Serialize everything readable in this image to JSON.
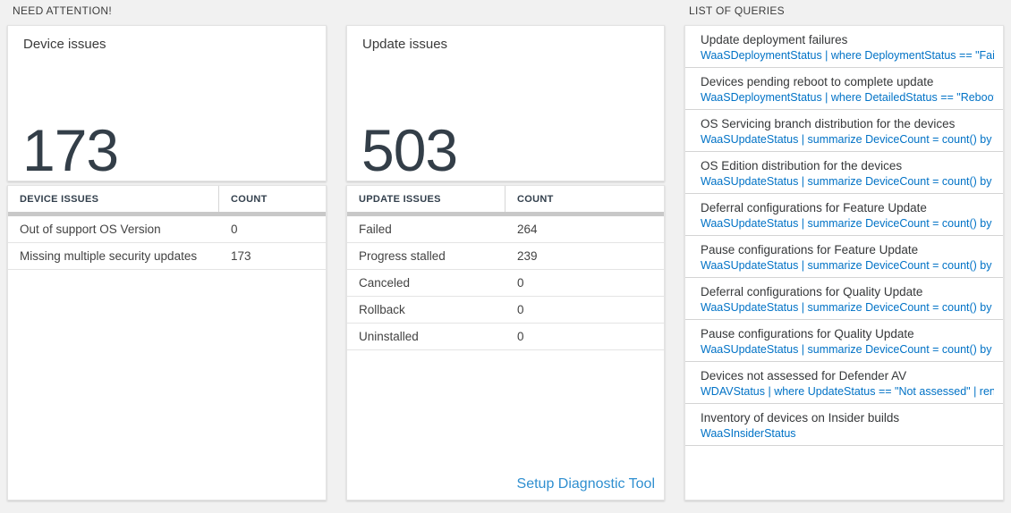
{
  "need_attention": {
    "title": "NEED ATTENTION!"
  },
  "queries_section": {
    "title": "LIST OF QUERIES"
  },
  "device_card": {
    "title": "Device issues",
    "count": "173",
    "table": {
      "headers": [
        "DEVICE ISSUES",
        "COUNT"
      ],
      "rows": [
        {
          "label": "Out of support OS Version",
          "count": "0"
        },
        {
          "label": "Missing multiple security updates",
          "count": "173"
        }
      ]
    }
  },
  "update_card": {
    "title": "Update issues",
    "count": "503",
    "table": {
      "headers": [
        "UPDATE ISSUES",
        "COUNT"
      ],
      "rows": [
        {
          "label": "Failed",
          "count": "264"
        },
        {
          "label": "Progress stalled",
          "count": "239"
        },
        {
          "label": "Canceled",
          "count": "0"
        },
        {
          "label": "Rollback",
          "count": "0"
        },
        {
          "label": "Uninstalled",
          "count": "0"
        }
      ]
    },
    "footer_link": "Setup Diagnostic Tool"
  },
  "queries": {
    "items": [
      {
        "title": "Update deployment failures",
        "query": "WaaSDeploymentStatus | where DeploymentStatus == \"Failed\" |..."
      },
      {
        "title": "Devices pending reboot to complete update",
        "query": "WaaSDeploymentStatus | where DetailedStatus == \"Reboot pend..."
      },
      {
        "title": "OS Servicing branch distribution for the devices",
        "query": "WaaSUpdateStatus | summarize DeviceCount = count() by OSSer..."
      },
      {
        "title": "OS Edition distribution for the devices",
        "query": "WaaSUpdateStatus | summarize DeviceCount = count() by OSEdit..."
      },
      {
        "title": "Deferral configurations for Feature Update",
        "query": "WaaSUpdateStatus | summarize DeviceCount = count() by Featur..."
      },
      {
        "title": "Pause configurations for Feature Update",
        "query": "WaaSUpdateStatus | summarize DeviceCount = count() by Featur..."
      },
      {
        "title": "Deferral configurations for Quality Update",
        "query": "WaaSUpdateStatus | summarize DeviceCount = count() by Qualit..."
      },
      {
        "title": "Pause configurations for Quality Update",
        "query": "WaaSUpdateStatus | summarize DeviceCount = count() by Qualit..."
      },
      {
        "title": "Devices not assessed for Defender AV",
        "query": "WDAVStatus | where UpdateStatus == \"Not assessed\" | render ta..."
      },
      {
        "title": "Inventory of devices on Insider builds",
        "query": "WaaSInsiderStatus"
      }
    ]
  },
  "colors": {
    "page_background": "#f1f1f1",
    "query_code_blue": "#0072c6",
    "diagnostic_link_blue": "#2f8fd0",
    "big_number_dark": "#333e48",
    "header_bar_gray": "#c8c8c8"
  }
}
